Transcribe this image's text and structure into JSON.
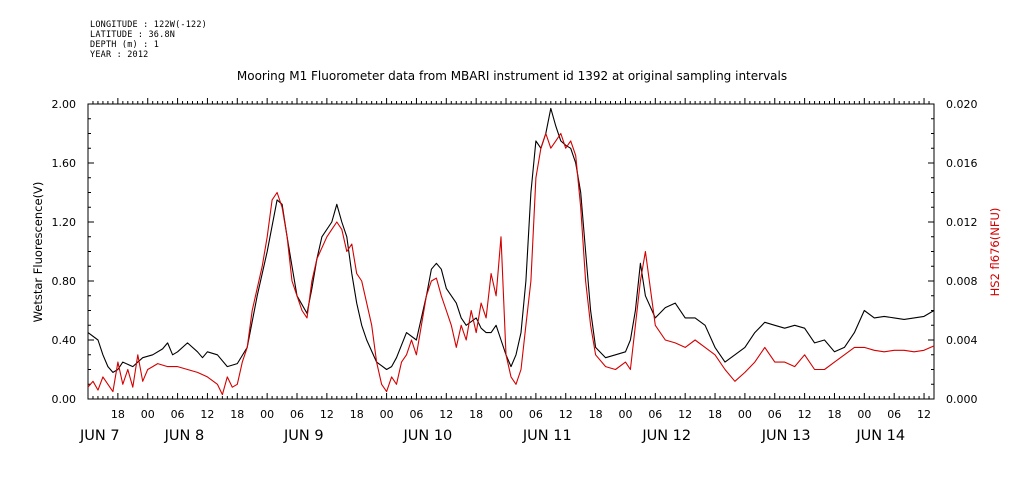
{
  "meta": {
    "longitude": "LONGITUDE : 122W(-122)",
    "latitude": "LATITUDE : 36.8N",
    "depth": "DEPTH (m) : 1",
    "year": "YEAR : 2012"
  },
  "colors": {
    "left_series": "#000000",
    "right_series": "#d40000"
  },
  "chart_data": {
    "type": "line",
    "title": "Mooring M1 Fluorometer data from MBARI instrument id 1392 at original sampling intervals",
    "xlabel": "",
    "ylabel": "Wetstar Fluorescence(V)",
    "ylabel_right": "HS2 fl676(NFU)",
    "x_unit": "hours since JUN 6 12:00, 2012",
    "xlim": [
      0,
      170
    ],
    "ylim": [
      0,
      2.0
    ],
    "ylim_right": [
      0,
      0.02
    ],
    "y_ticks": [
      "0.00",
      "0.40",
      "0.80",
      "1.20",
      "1.60",
      "2.00"
    ],
    "y_ticks_right": [
      "0.000",
      "0.004",
      "0.008",
      "0.012",
      "0.016",
      "0.020"
    ],
    "x_hour_ticks": [
      {
        "x": 6,
        "label": "18"
      },
      {
        "x": 12,
        "label": "00"
      },
      {
        "x": 18,
        "label": "06"
      },
      {
        "x": 24,
        "label": "12"
      },
      {
        "x": 30,
        "label": "18"
      },
      {
        "x": 36,
        "label": "00"
      },
      {
        "x": 42,
        "label": "06"
      },
      {
        "x": 48,
        "label": "12"
      },
      {
        "x": 54,
        "label": "18"
      },
      {
        "x": 60,
        "label": "00"
      },
      {
        "x": 66,
        "label": "06"
      },
      {
        "x": 72,
        "label": "12"
      },
      {
        "x": 78,
        "label": "18"
      },
      {
        "x": 84,
        "label": "00"
      },
      {
        "x": 90,
        "label": "06"
      },
      {
        "x": 96,
        "label": "12"
      },
      {
        "x": 102,
        "label": "18"
      },
      {
        "x": 108,
        "label": "00"
      },
      {
        "x": 114,
        "label": "06"
      },
      {
        "x": 120,
        "label": "12"
      },
      {
        "x": 126,
        "label": "18"
      },
      {
        "x": 132,
        "label": "00"
      },
      {
        "x": 138,
        "label": "06"
      },
      {
        "x": 144,
        "label": "12"
      },
      {
        "x": 150,
        "label": "18"
      },
      {
        "x": 156,
        "label": "00"
      },
      {
        "x": 162,
        "label": "06"
      },
      {
        "x": 168,
        "label": "12"
      }
    ],
    "x_day_labels": [
      {
        "x": 0,
        "label": "JUN  7"
      },
      {
        "x": 17,
        "label": "JUN  8"
      },
      {
        "x": 41,
        "label": "JUN  9"
      },
      {
        "x": 65,
        "label": "JUN 10"
      },
      {
        "x": 89,
        "label": "JUN 11"
      },
      {
        "x": 113,
        "label": "JUN 12"
      },
      {
        "x": 137,
        "label": "JUN 13"
      },
      {
        "x": 156,
        "label": "JUN 14"
      }
    ],
    "series": [
      {
        "axis": "left",
        "x": [
          0,
          2,
          3,
          4,
          5,
          6,
          7,
          9,
          11,
          13,
          15,
          16,
          17,
          18,
          20,
          22,
          23,
          24,
          26,
          28,
          30,
          32,
          34,
          36,
          38,
          39,
          40,
          41,
          42,
          44,
          45,
          46,
          47,
          49,
          50,
          51,
          52,
          53,
          54,
          55,
          56,
          58,
          60,
          61,
          62,
          64,
          66,
          68,
          69,
          70,
          71,
          72,
          74,
          75,
          76,
          78,
          79,
          80,
          81,
          82,
          83,
          84,
          85,
          86,
          87,
          88,
          89,
          90,
          91,
          92,
          93,
          94,
          95,
          96,
          97,
          98,
          99,
          100,
          101,
          102,
          104,
          106,
          108,
          109,
          110,
          111,
          112,
          114,
          116,
          118,
          120,
          122,
          124,
          126,
          128,
          130,
          132,
          134,
          136,
          138,
          140,
          142,
          144,
          146,
          148,
          150,
          152,
          154,
          156,
          158,
          160,
          162,
          164,
          166,
          168,
          170
        ],
        "y": [
          0.45,
          0.4,
          0.3,
          0.22,
          0.18,
          0.2,
          0.25,
          0.22,
          0.28,
          0.3,
          0.34,
          0.38,
          0.3,
          0.32,
          0.38,
          0.32,
          0.28,
          0.32,
          0.3,
          0.22,
          0.24,
          0.35,
          0.7,
          1.0,
          1.35,
          1.32,
          1.1,
          0.9,
          0.7,
          0.58,
          0.75,
          0.95,
          1.1,
          1.2,
          1.32,
          1.2,
          1.1,
          0.85,
          0.65,
          0.5,
          0.4,
          0.25,
          0.2,
          0.22,
          0.28,
          0.45,
          0.4,
          0.7,
          0.88,
          0.92,
          0.88,
          0.75,
          0.65,
          0.55,
          0.5,
          0.55,
          0.48,
          0.45,
          0.45,
          0.5,
          0.4,
          0.3,
          0.22,
          0.3,
          0.45,
          0.8,
          1.4,
          1.75,
          1.7,
          1.8,
          1.97,
          1.85,
          1.75,
          1.72,
          1.7,
          1.6,
          1.4,
          1.0,
          0.6,
          0.35,
          0.28,
          0.3,
          0.32,
          0.4,
          0.6,
          0.92,
          0.7,
          0.55,
          0.62,
          0.65,
          0.55,
          0.55,
          0.5,
          0.35,
          0.25,
          0.3,
          0.35,
          0.45,
          0.52,
          0.5,
          0.48,
          0.5,
          0.48,
          0.38,
          0.4,
          0.32,
          0.35,
          0.45,
          0.6,
          0.55,
          0.56,
          0.55,
          0.54,
          0.55,
          0.56,
          0.6
        ]
      },
      {
        "axis": "right",
        "x": [
          0,
          1,
          2,
          3,
          4,
          5,
          6,
          7,
          8,
          9,
          10,
          11,
          12,
          13,
          14,
          16,
          18,
          20,
          22,
          24,
          26,
          27,
          28,
          29,
          30,
          31,
          32,
          33,
          34,
          35,
          36,
          37,
          38,
          39,
          40,
          41,
          42,
          43,
          44,
          45,
          46,
          48,
          49,
          50,
          51,
          52,
          53,
          54,
          55,
          56,
          57,
          58,
          59,
          60,
          61,
          62,
          63,
          64,
          65,
          66,
          67,
          68,
          69,
          70,
          71,
          72,
          73,
          74,
          75,
          76,
          77,
          78,
          79,
          80,
          81,
          82,
          83,
          84,
          85,
          86,
          87,
          88,
          89,
          90,
          91,
          92,
          93,
          94,
          95,
          96,
          97,
          98,
          99,
          100,
          101,
          102,
          104,
          106,
          108,
          109,
          110,
          111,
          112,
          114,
          116,
          118,
          120,
          122,
          124,
          126,
          128,
          130,
          132,
          134,
          136,
          138,
          140,
          142,
          144,
          146,
          148,
          150,
          152,
          154,
          156,
          158,
          160,
          162,
          164,
          166,
          168,
          170
        ],
        "y": [
          0.0008,
          0.0012,
          0.0006,
          0.0015,
          0.001,
          0.0005,
          0.0025,
          0.001,
          0.002,
          0.0008,
          0.003,
          0.0012,
          0.002,
          0.0022,
          0.0024,
          0.0022,
          0.0022,
          0.002,
          0.0018,
          0.0015,
          0.001,
          0.0003,
          0.0015,
          0.0008,
          0.001,
          0.0025,
          0.0035,
          0.006,
          0.0075,
          0.009,
          0.011,
          0.0135,
          0.014,
          0.013,
          0.011,
          0.008,
          0.007,
          0.006,
          0.0055,
          0.008,
          0.0095,
          0.011,
          0.0115,
          0.012,
          0.0115,
          0.01,
          0.0105,
          0.0085,
          0.008,
          0.0065,
          0.005,
          0.0025,
          0.001,
          0.0005,
          0.0015,
          0.001,
          0.0025,
          0.003,
          0.004,
          0.003,
          0.005,
          0.007,
          0.008,
          0.0082,
          0.007,
          0.006,
          0.005,
          0.0035,
          0.005,
          0.004,
          0.006,
          0.0045,
          0.0065,
          0.0055,
          0.0085,
          0.007,
          0.011,
          0.003,
          0.0015,
          0.001,
          0.002,
          0.005,
          0.008,
          0.015,
          0.017,
          0.018,
          0.017,
          0.0175,
          0.018,
          0.017,
          0.0175,
          0.0165,
          0.013,
          0.008,
          0.005,
          0.003,
          0.0022,
          0.002,
          0.0025,
          0.002,
          0.005,
          0.008,
          0.01,
          0.005,
          0.004,
          0.0038,
          0.0035,
          0.004,
          0.0035,
          0.003,
          0.002,
          0.0012,
          0.0018,
          0.0025,
          0.0035,
          0.0025,
          0.0025,
          0.0022,
          0.003,
          0.002,
          0.002,
          0.0025,
          0.003,
          0.0035,
          0.0035,
          0.0033,
          0.0032,
          0.0033,
          0.0033,
          0.0032,
          0.0033,
          0.0036
        ]
      }
    ]
  }
}
